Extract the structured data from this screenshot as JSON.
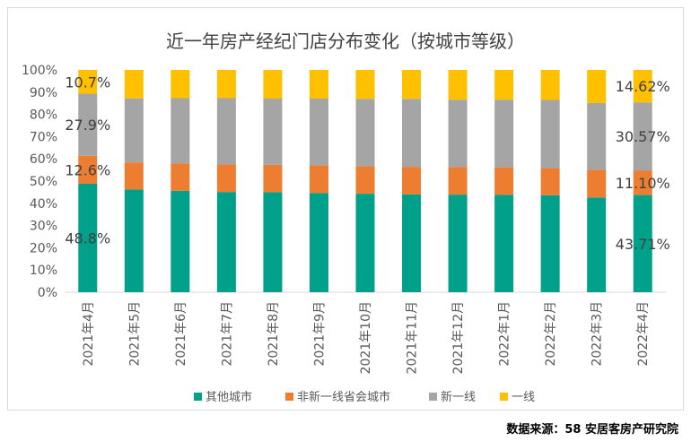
{
  "chart_data": {
    "type": "bar",
    "stacked": true,
    "percent": true,
    "title": "近一年房产经纪门店分布变化（按城市等级）",
    "categories": [
      "2021年4月",
      "2021年5月",
      "2021年6月",
      "2021年7月",
      "2021年8月",
      "2021年9月",
      "2021年10月",
      "2021年11月",
      "2021年12月",
      "2022年1月",
      "2022年2月",
      "2022年3月",
      "2022年4月"
    ],
    "y_ticks": [
      "0%",
      "10%",
      "20%",
      "30%",
      "40%",
      "50%",
      "60%",
      "70%",
      "80%",
      "90%",
      "100%"
    ],
    "ylim": [
      0,
      100
    ],
    "legend_position": "bottom",
    "series": [
      {
        "name": "其他城市",
        "color": "#00a08a",
        "values": [
          48.8,
          46.2,
          45.6,
          45.1,
          45.0,
          44.6,
          44.3,
          44.0,
          43.9,
          43.8,
          43.6,
          42.6,
          43.71
        ]
      },
      {
        "name": "非新一线省会城市",
        "color": "#ed7d31",
        "values": [
          12.6,
          12.2,
          12.3,
          12.4,
          12.3,
          12.5,
          12.4,
          12.4,
          12.4,
          12.4,
          12.2,
          12.5,
          11.1
        ]
      },
      {
        "name": "新一线",
        "color": "#a5a5a5",
        "values": [
          27.9,
          28.8,
          29.4,
          29.8,
          29.8,
          30.0,
          30.3,
          30.6,
          30.3,
          30.4,
          30.7,
          30.0,
          30.57
        ]
      },
      {
        "name": "一线",
        "color": "#ffc000",
        "values": [
          10.7,
          12.8,
          12.7,
          12.7,
          12.9,
          12.9,
          13.0,
          13.0,
          13.4,
          13.4,
          13.5,
          14.9,
          14.62
        ]
      }
    ],
    "data_labels": [
      {
        "category_index": 0,
        "series_index": 0,
        "text": "48.8%"
      },
      {
        "category_index": 0,
        "series_index": 1,
        "text": "12.6%"
      },
      {
        "category_index": 0,
        "series_index": 2,
        "text": "27.9%"
      },
      {
        "category_index": 0,
        "series_index": 3,
        "text": "10.7%"
      },
      {
        "category_index": 12,
        "series_index": 0,
        "text": "43.71%"
      },
      {
        "category_index": 12,
        "series_index": 1,
        "text": "11.10%"
      },
      {
        "category_index": 12,
        "series_index": 2,
        "text": "30.57%"
      },
      {
        "category_index": 12,
        "series_index": 3,
        "text": "14.62%"
      }
    ]
  },
  "source": "数据来源：58 安居客房产研究院"
}
